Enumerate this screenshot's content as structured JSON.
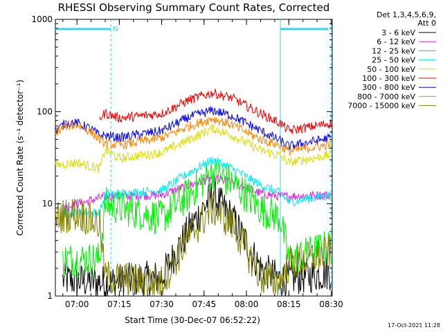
{
  "chart_data": {
    "type": "line",
    "title": "RHESSI Observing Summary Count Rates, Corrected",
    "xlabel": "Start Time (30-Dec-07 06:52:22)",
    "ylabel": "Corrected Count Rate (s⁻¹ detector⁻¹)",
    "yscale": "log",
    "ylim": [
      1,
      1000
    ],
    "xlim_minutes_after_start": [
      0,
      98
    ],
    "x_ticks": [
      "07:00",
      "07:15",
      "07:30",
      "07:45",
      "08:00",
      "08:15",
      "08:30"
    ],
    "y_ticks": [
      "1",
      "10",
      "100",
      "1000"
    ],
    "legend_header": [
      "Det 1,3,4,5,6,9,",
      "Att 0"
    ],
    "legend_placement": "right",
    "timestamp": "17-Oct-2021 11:28",
    "flags": [
      {
        "label": "N",
        "color": "#3ad3e8",
        "intervals": [
          [
            "06:52:22",
            "07:12"
          ],
          [
            "08:12",
            "08:29"
          ]
        ]
      }
    ],
    "vertical_markers": [
      {
        "time": "07:12",
        "style": "dashed",
        "color": "#3ad3e8"
      },
      {
        "time": "08:12",
        "style": "solid",
        "color": "#3ad3e8"
      },
      {
        "time": "08:30",
        "style": "dashed",
        "color": "#3ad3e8"
      }
    ],
    "series": [
      {
        "name": "3 - 6 keV",
        "color": "#000000",
        "times": [
          "06:55",
          "07:10",
          "07:30",
          "07:40",
          "07:48",
          "07:55",
          "08:05",
          "08:12",
          "08:30"
        ],
        "values": [
          1.5,
          1.4,
          1.6,
          5.5,
          12.5,
          7.0,
          2.0,
          1.5,
          1.8
        ]
      },
      {
        "name": "6 - 12 keV",
        "color": "#e020e0",
        "times": [
          "06:55",
          "07:10",
          "07:30",
          "07:40",
          "07:48",
          "07:55",
          "08:05",
          "08:12",
          "08:30"
        ],
        "values": [
          9.0,
          12.0,
          12.5,
          16.0,
          19.0,
          17.0,
          13.0,
          12.0,
          12.5
        ]
      },
      {
        "name": "12 - 25 keV",
        "color": "#00ee00",
        "times": [
          "06:55",
          "07:08",
          "07:10",
          "07:30",
          "07:40",
          "07:48",
          "07:55",
          "08:05",
          "08:12",
          "08:15",
          "08:30"
        ],
        "values": [
          2.5,
          2.5,
          10.0,
          7.0,
          13.0,
          22.0,
          17.0,
          9.0,
          7.0,
          2.5,
          3.5
        ]
      },
      {
        "name": "25 - 50 keV",
        "color": "#00eeee",
        "times": [
          "06:55",
          "07:08",
          "07:10",
          "07:30",
          "07:40",
          "07:48",
          "07:55",
          "08:05",
          "08:12",
          "08:15",
          "08:30"
        ],
        "values": [
          8.0,
          8.0,
          12.5,
          14.0,
          22.0,
          30.0,
          24.0,
          16.0,
          13.0,
          10.5,
          12.5
        ]
      },
      {
        "name": "50 - 100 keV",
        "color": "#dddd00",
        "times": [
          "06:52",
          "07:00",
          "07:08",
          "07:10",
          "07:15",
          "07:30",
          "07:40",
          "07:48",
          "07:55",
          "08:05",
          "08:12",
          "08:15",
          "08:30"
        ],
        "values": [
          26,
          28,
          24,
          38,
          31,
          36,
          50,
          66,
          55,
          38,
          33,
          28,
          34
        ]
      },
      {
        "name": "100 - 300 keV",
        "color": "#ee0000",
        "times": [
          "07:08",
          "07:10",
          "07:15",
          "07:30",
          "07:40",
          "07:48",
          "07:55",
          "08:05",
          "08:12",
          "08:15",
          "08:30"
        ],
        "values": [
          85,
          96,
          85,
          95,
          135,
          160,
          140,
          95,
          75,
          62,
          75
        ]
      },
      {
        "name": "300 - 800 keV",
        "color": "#0000ee",
        "times": [
          "06:52",
          "06:56",
          "07:00",
          "07:05",
          "07:08",
          "07:10",
          "07:15",
          "07:30",
          "07:40",
          "07:48",
          "07:55",
          "08:05",
          "08:12",
          "08:15",
          "08:30"
        ],
        "values": [
          60,
          75,
          75,
          65,
          55,
          55,
          52,
          62,
          88,
          103,
          90,
          62,
          48,
          42,
          52
        ]
      },
      {
        "name": "800 - 7000 keV",
        "color": "#ff8800",
        "times": [
          "06:52",
          "06:56",
          "07:00",
          "07:05",
          "07:08",
          "07:10",
          "07:15",
          "07:30",
          "07:40",
          "07:48",
          "07:55",
          "08:05",
          "08:12",
          "08:15",
          "08:30"
        ],
        "values": [
          58,
          70,
          72,
          60,
          50,
          45,
          43,
          52,
          70,
          84,
          72,
          50,
          43,
          37,
          44
        ]
      },
      {
        "name": "7000 - 15000 keV",
        "color": "#808000",
        "times": [
          "06:52",
          "07:00",
          "07:08",
          "07:10",
          "07:30",
          "07:40",
          "07:48",
          "07:55",
          "08:05",
          "08:12",
          "08:15",
          "08:30"
        ],
        "values": [
          7.0,
          8.0,
          6.0,
          1.6,
          1.4,
          4.5,
          9.0,
          6.0,
          1.6,
          1.4,
          2.2,
          3.0
        ]
      }
    ]
  }
}
